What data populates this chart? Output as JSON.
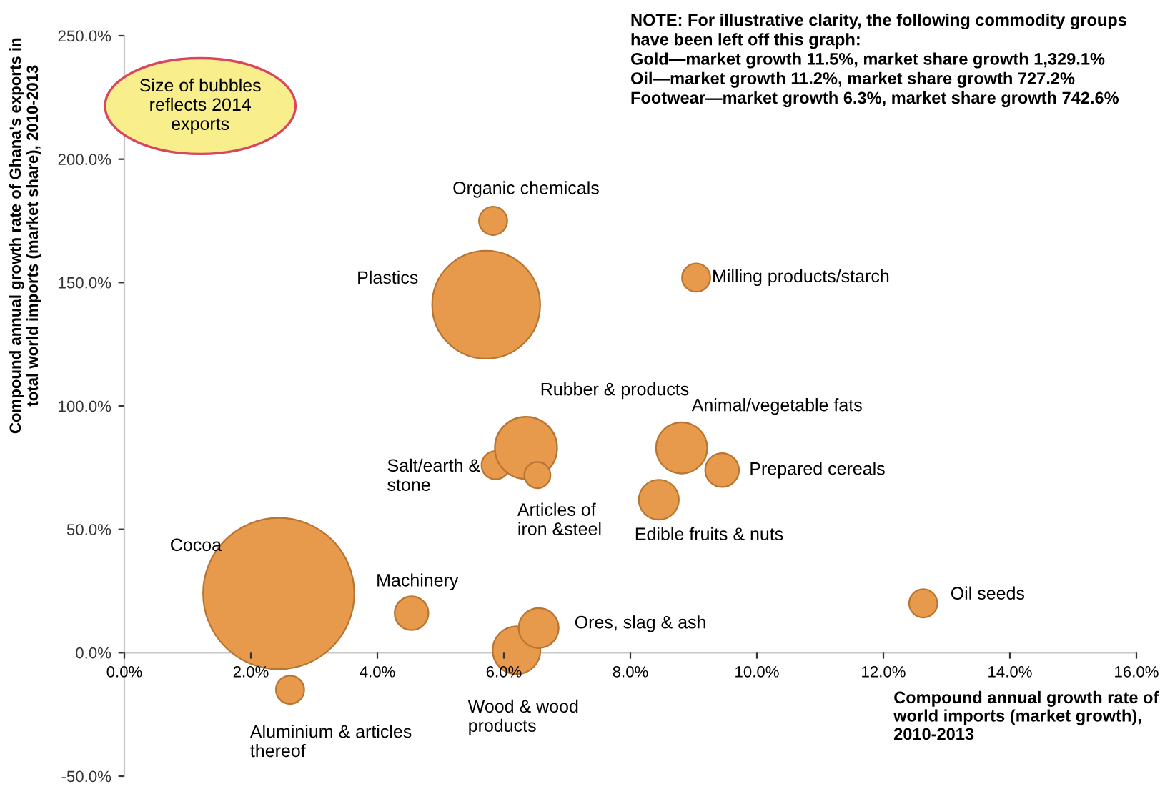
{
  "chart_data": {
    "type": "bubble",
    "xlabel": "Compound annual growth rate of\nworld imports (market growth),\n2010-2013",
    "ylabel": "Compound annual growth rate of Ghana's exports in\ntotal world imports (market share), 2010-2013",
    "xlim": [
      0,
      16
    ],
    "ylim": [
      -50,
      250
    ],
    "xticks": [
      {
        "value": 0,
        "label": "0.0%"
      },
      {
        "value": 2,
        "label": "2.0%"
      },
      {
        "value": 4,
        "label": "4.0%"
      },
      {
        "value": 6,
        "label": "6.0%"
      },
      {
        "value": 8,
        "label": "8.0%"
      },
      {
        "value": 10,
        "label": "10.0%"
      },
      {
        "value": 12,
        "label": "12.0%"
      },
      {
        "value": 14,
        "label": "14.0%"
      },
      {
        "value": 16,
        "label": "16.0%"
      }
    ],
    "yticks": [
      {
        "value": -50,
        "label": "-50.0%"
      },
      {
        "value": 0,
        "label": "0.0%"
      },
      {
        "value": 50,
        "label": "50.0%"
      },
      {
        "value": 100,
        "label": "100.0%"
      },
      {
        "value": 150,
        "label": "150.0%"
      },
      {
        "value": 200,
        "label": "200.0%"
      },
      {
        "value": 250,
        "label": "250.0%"
      }
    ],
    "grid": false,
    "legend": false,
    "series": [
      {
        "name": "Cocoa",
        "color": "#e89a4c",
        "x": [
          2.44
        ],
        "values": [
          24
        ],
        "sizes": [
          1
        ]
      },
      {
        "name": "Aluminium & articles\nthereof",
        "color": "#e89a4c",
        "x": [
          2.62
        ],
        "values": [
          -15
        ],
        "sizes": [
          0.035
        ]
      },
      {
        "name": "Machinery",
        "color": "#e89a4c",
        "x": [
          4.54
        ],
        "values": [
          16
        ],
        "sizes": [
          0.05
        ]
      },
      {
        "name": "Wood & wood\nproducts",
        "color": "#e89a4c",
        "x": [
          6.2
        ],
        "values": [
          1
        ],
        "sizes": [
          0.1
        ]
      },
      {
        "name": "Ores, slag & ash",
        "color": "#e89a4c",
        "x": [
          6.55
        ],
        "values": [
          10
        ],
        "sizes": [
          0.07
        ]
      },
      {
        "name": "Salt/earth &\nstone",
        "color": "#e89a4c",
        "x": [
          5.87
        ],
        "values": [
          76
        ],
        "sizes": [
          0.035
        ]
      },
      {
        "name": "Rubber & products",
        "color": "#e89a4c",
        "x": [
          6.35
        ],
        "values": [
          83
        ],
        "sizes": [
          0.17
        ]
      },
      {
        "name": "Articles of\niron &steel",
        "color": "#e89a4c",
        "x": [
          6.53
        ],
        "values": [
          72
        ],
        "sizes": [
          0.03
        ]
      },
      {
        "name": "Organic chemicals",
        "color": "#e89a4c",
        "x": [
          5.83
        ],
        "values": [
          175
        ],
        "sizes": [
          0.035
        ]
      },
      {
        "name": "Plastics",
        "color": "#e89a4c",
        "x": [
          5.72
        ],
        "values": [
          141
        ],
        "sizes": [
          0.51
        ]
      },
      {
        "name": "Milling products/starch",
        "color": "#e89a4c",
        "x": [
          9.04
        ],
        "values": [
          152
        ],
        "sizes": [
          0.035
        ]
      },
      {
        "name": "Animal/vegetable fats",
        "color": "#e89a4c",
        "x": [
          8.81
        ],
        "values": [
          83
        ],
        "sizes": [
          0.115
        ]
      },
      {
        "name": "Prepared cereals",
        "color": "#e89a4c",
        "x": [
          9.45
        ],
        "values": [
          74
        ],
        "sizes": [
          0.05
        ]
      },
      {
        "name": "Edible fruits & nuts",
        "color": "#e89a4c",
        "x": [
          8.45
        ],
        "values": [
          62
        ],
        "sizes": [
          0.07
        ]
      },
      {
        "name": "Oil seeds",
        "color": "#e89a4c",
        "x": [
          12.63
        ],
        "values": [
          20
        ],
        "sizes": [
          0.035
        ]
      }
    ],
    "annotations": [
      "Size of bubbles\nreflects 2014\nexports",
      "NOTE: For illustrative clarity, the following commodity groups\nhave been left off this graph:\nGold—market growth 11.5%, market share growth 1,329.1%\nOil—market growth 11.2%, market share growth 727.2%\nFootwear—market growth 6.3%, market share growth 742.6%"
    ]
  }
}
